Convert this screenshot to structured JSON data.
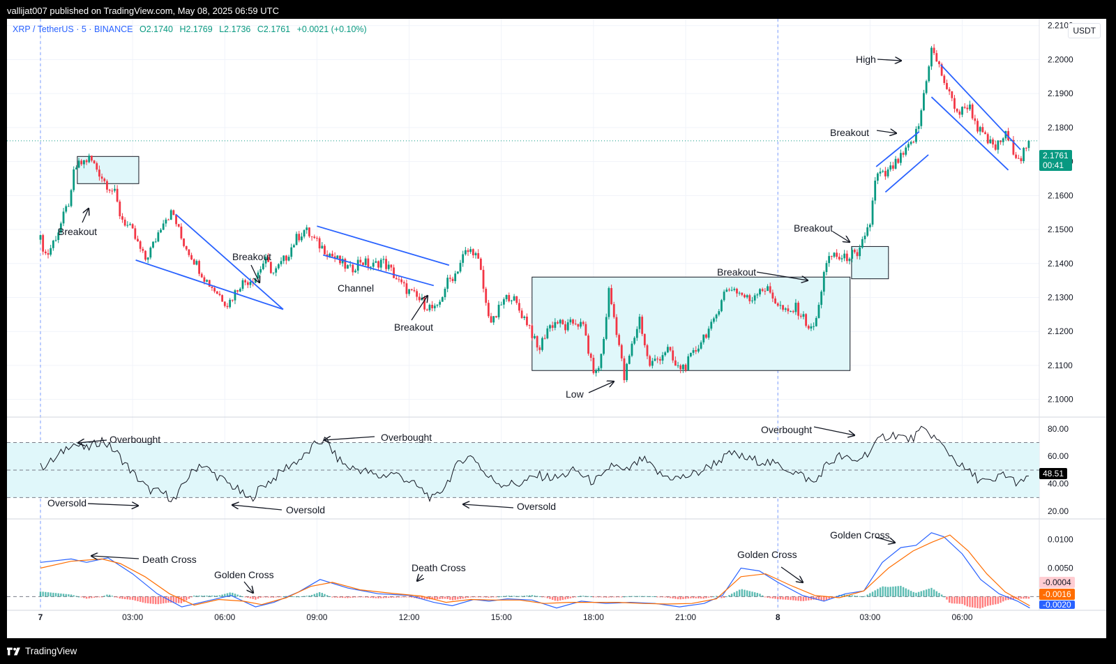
{
  "header": {
    "published_text": "vallijat007 published on TradingView.com, May 08, 2025 06:59 UTC"
  },
  "footer": {
    "brand": "TradingView"
  },
  "symbol_bar": {
    "symbol": "XRP / TetherUS · 5 · BINANCE",
    "open": "O2.1740",
    "high": "H2.1769",
    "low": "L2.1736",
    "close": "C2.1761",
    "change": "+0.0021 (+0.10%)"
  },
  "currency_label": "USDT",
  "colors": {
    "up": "#089981",
    "down": "#f23645",
    "trendline": "#2962ff",
    "box_fill": "#e0f7fa",
    "macd_line": "#2962ff",
    "signal_line": "#ff6d00",
    "rsi_line": "#131722"
  },
  "price_tag": {
    "price": "2.1761",
    "countdown": "00:41"
  },
  "rsi_tag": "48.51",
  "macd_tags": [
    "-0.0004",
    "-0.0016",
    "-0.0020"
  ],
  "annotations": {
    "breakout_1": "Breakout",
    "breakout_2": "Breakout",
    "channel": "Channel",
    "breakout_3": "Breakout",
    "low": "Low",
    "breakout_4": "Breakout",
    "breakout_5": "Breakout",
    "breakout_6": "Breakout",
    "high": "High",
    "overbought_1": "Overbought",
    "overbought_2": "Overbought",
    "overbought_3": "Overbought",
    "oversold_1": "Oversold",
    "oversold_2": "Oversold",
    "oversold_3": "Oversold",
    "death_cross_1": "Death Cross",
    "golden_cross_1": "Golden Cross",
    "death_cross_2": "Death Cross",
    "golden_cross_2": "Golden Cross",
    "golden_cross_3": "Golden Cross"
  },
  "chart_data": [
    {
      "type": "candlestick",
      "title": "XRP / TetherUS · 5 · BINANCE",
      "ylim": [
        2.095,
        2.212
      ],
      "y_ticks": [
        "2.1000",
        "2.1100",
        "2.1200",
        "2.1300",
        "2.1400",
        "2.1500",
        "2.1600",
        "2.1700",
        "2.1800",
        "2.1900",
        "2.2000",
        "2.2100"
      ],
      "x_ticks": [
        "7",
        "03:00",
        "06:00",
        "09:00",
        "12:00",
        "15:00",
        "18:00",
        "21:00",
        "8",
        "03:00",
        "06:00"
      ],
      "close_path": [
        [
          0.0,
          2.147
        ],
        [
          0.2,
          2.142
        ],
        [
          0.6,
          2.15
        ],
        [
          1.0,
          2.16
        ],
        [
          1.1,
          2.168
        ],
        [
          1.6,
          2.171
        ],
        [
          1.9,
          2.167
        ],
        [
          2.1,
          2.164
        ],
        [
          2.4,
          2.161
        ],
        [
          2.6,
          2.154
        ],
        [
          3.0,
          2.149
        ],
        [
          3.4,
          2.141
        ],
        [
          3.7,
          2.146
        ],
        [
          4.0,
          2.153
        ],
        [
          4.3,
          2.155
        ],
        [
          4.6,
          2.147
        ],
        [
          5.0,
          2.141
        ],
        [
          5.4,
          2.135
        ],
        [
          5.8,
          2.131
        ],
        [
          6.1,
          2.128
        ],
        [
          6.5,
          2.134
        ],
        [
          7.0,
          2.136
        ],
        [
          7.3,
          2.141
        ],
        [
          7.6,
          2.137
        ],
        [
          8.0,
          2.142
        ],
        [
          8.3,
          2.147
        ],
        [
          8.6,
          2.15
        ],
        [
          9.0,
          2.146
        ],
        [
          9.4,
          2.143
        ],
        [
          9.8,
          2.14
        ],
        [
          10.1,
          2.138
        ],
        [
          10.4,
          2.141
        ],
        [
          10.8,
          2.139
        ],
        [
          11.1,
          2.141
        ],
        [
          11.4,
          2.138
        ],
        [
          11.7,
          2.134
        ],
        [
          12.1,
          2.131
        ],
        [
          12.5,
          2.128
        ],
        [
          12.9,
          2.126
        ],
        [
          13.2,
          2.134
        ],
        [
          13.5,
          2.137
        ],
        [
          13.8,
          2.143
        ],
        [
          14.1,
          2.144
        ],
        [
          14.3,
          2.139
        ],
        [
          14.5,
          2.128
        ],
        [
          14.7,
          2.122
        ],
        [
          15.0,
          2.128
        ],
        [
          15.3,
          2.131
        ],
        [
          15.6,
          2.126
        ],
        [
          15.9,
          2.122
        ],
        [
          16.2,
          2.114
        ],
        [
          16.5,
          2.121
        ],
        [
          16.8,
          2.123
        ],
        [
          17.1,
          2.121
        ],
        [
          17.4,
          2.123
        ],
        [
          17.7,
          2.121
        ],
        [
          17.9,
          2.111
        ],
        [
          18.1,
          2.107
        ],
        [
          18.3,
          2.115
        ],
        [
          18.5,
          2.132
        ],
        [
          18.8,
          2.118
        ],
        [
          19.0,
          2.106
        ],
        [
          19.2,
          2.114
        ],
        [
          19.5,
          2.124
        ],
        [
          19.8,
          2.11
        ],
        [
          20.1,
          2.112
        ],
        [
          20.4,
          2.115
        ],
        [
          20.7,
          2.109
        ],
        [
          21.0,
          2.11
        ],
        [
          21.3,
          2.114
        ],
        [
          21.6,
          2.119
        ],
        [
          21.9,
          2.122
        ],
        [
          22.2,
          2.131
        ],
        [
          22.5,
          2.133
        ],
        [
          22.8,
          2.131
        ],
        [
          23.1,
          2.129
        ],
        [
          23.4,
          2.133
        ],
        [
          23.7,
          2.132
        ],
        [
          24.0,
          2.128
        ],
        [
          24.3,
          2.125
        ],
        [
          24.6,
          2.127
        ],
        [
          24.9,
          2.123
        ],
        [
          25.1,
          2.12
        ],
        [
          25.3,
          2.125
        ],
        [
          25.5,
          2.138
        ],
        [
          25.8,
          2.143
        ],
        [
          26.1,
          2.141
        ],
        [
          26.4,
          2.143
        ],
        [
          26.6,
          2.141
        ],
        [
          26.8,
          2.148
        ],
        [
          27.0,
          2.152
        ],
        [
          27.2,
          2.166
        ],
        [
          27.5,
          2.166
        ],
        [
          27.8,
          2.169
        ],
        [
          28.1,
          2.172
        ],
        [
          28.4,
          2.176
        ],
        [
          28.6,
          2.181
        ],
        [
          28.8,
          2.193
        ],
        [
          29.0,
          2.203
        ],
        [
          29.2,
          2.199
        ],
        [
          29.4,
          2.194
        ],
        [
          29.6,
          2.189
        ],
        [
          29.9,
          2.184
        ],
        [
          30.2,
          2.187
        ],
        [
          30.5,
          2.18
        ],
        [
          30.8,
          2.176
        ],
        [
          31.1,
          2.174
        ],
        [
          31.4,
          2.178
        ],
        [
          31.7,
          2.173
        ],
        [
          31.9,
          2.171
        ],
        [
          32.1,
          2.175
        ],
        [
          32.2,
          2.1761
        ]
      ]
    },
    {
      "type": "line",
      "title": "RSI",
      "ylim": [
        15,
        88
      ],
      "y_ticks": [
        "20.00",
        "40.00",
        "60.00",
        "80.00"
      ],
      "bands": [
        30,
        50,
        70
      ],
      "path": [
        [
          0.0,
          52
        ],
        [
          0.5,
          58
        ],
        [
          1.0,
          70
        ],
        [
          1.5,
          65
        ],
        [
          2.0,
          72
        ],
        [
          2.5,
          62
        ],
        [
          3.0,
          48
        ],
        [
          3.5,
          36
        ],
        [
          4.0,
          33
        ],
        [
          4.4,
          28
        ],
        [
          4.7,
          42
        ],
        [
          5.2,
          55
        ],
        [
          5.6,
          48
        ],
        [
          6.0,
          42
        ],
        [
          6.4,
          36
        ],
        [
          6.8,
          28
        ],
        [
          7.2,
          38
        ],
        [
          7.6,
          44
        ],
        [
          8.0,
          52
        ],
        [
          8.6,
          60
        ],
        [
          9.0,
          70
        ],
        [
          9.3,
          72
        ],
        [
          9.6,
          60
        ],
        [
          10.0,
          52
        ],
        [
          10.5,
          50
        ],
        [
          11.0,
          45
        ],
        [
          11.5,
          48
        ],
        [
          12.0,
          42
        ],
        [
          12.5,
          34
        ],
        [
          12.8,
          28
        ],
        [
          13.2,
          40
        ],
        [
          13.7,
          58
        ],
        [
          14.1,
          60
        ],
        [
          14.5,
          46
        ],
        [
          15.0,
          40
        ],
        [
          15.6,
          40
        ],
        [
          16.2,
          46
        ],
        [
          16.8,
          44
        ],
        [
          17.4,
          50
        ],
        [
          17.9,
          42
        ],
        [
          18.3,
          44
        ],
        [
          18.6,
          55
        ],
        [
          19.0,
          48
        ],
        [
          19.6,
          58
        ],
        [
          20.2,
          46
        ],
        [
          20.8,
          44
        ],
        [
          21.4,
          48
        ],
        [
          22.0,
          56
        ],
        [
          22.5,
          62
        ],
        [
          23.0,
          58
        ],
        [
          23.6,
          56
        ],
        [
          24.2,
          52
        ],
        [
          24.8,
          46
        ],
        [
          25.2,
          40
        ],
        [
          25.5,
          52
        ],
        [
          26.0,
          60
        ],
        [
          26.5,
          56
        ],
        [
          27.0,
          64
        ],
        [
          27.4,
          74
        ],
        [
          27.8,
          76
        ],
        [
          28.3,
          72
        ],
        [
          28.7,
          79
        ],
        [
          29.0,
          76
        ],
        [
          29.5,
          64
        ],
        [
          30.0,
          52
        ],
        [
          30.5,
          44
        ],
        [
          31.0,
          40
        ],
        [
          31.3,
          48
        ],
        [
          31.7,
          42
        ],
        [
          32.0,
          40
        ],
        [
          32.2,
          48.51
        ]
      ]
    },
    {
      "type": "macd",
      "title": "MACD",
      "ylim": [
        -0.0024,
        0.0135
      ],
      "y_ticks": [
        "0.0050",
        "0.0100"
      ],
      "macd": [
        [
          0.0,
          0.006
        ],
        [
          1.0,
          0.0066
        ],
        [
          1.5,
          0.006
        ],
        [
          2.2,
          0.0068
        ],
        [
          3.0,
          0.004
        ],
        [
          3.8,
          0.0005
        ],
        [
          4.6,
          -0.0018
        ],
        [
          5.4,
          -0.0008
        ],
        [
          6.2,
          0.0002
        ],
        [
          7.0,
          -0.0018
        ],
        [
          7.6,
          -0.001
        ],
        [
          8.4,
          0.0008
        ],
        [
          9.1,
          0.003
        ],
        [
          10.0,
          0.0015
        ],
        [
          11.0,
          0.0005
        ],
        [
          12.0,
          0.0002
        ],
        [
          12.8,
          -0.001
        ],
        [
          13.4,
          -0.0016
        ],
        [
          14.1,
          -0.0005
        ],
        [
          14.6,
          -0.0008
        ],
        [
          15.2,
          -0.0004
        ],
        [
          16.0,
          -0.0006
        ],
        [
          16.8,
          -0.002
        ],
        [
          17.6,
          -0.0008
        ],
        [
          18.4,
          -0.0012
        ],
        [
          19.2,
          -0.001
        ],
        [
          20.0,
          -0.0012
        ],
        [
          20.8,
          -0.0018
        ],
        [
          21.6,
          -0.0012
        ],
        [
          22.2,
          0.0002
        ],
        [
          22.8,
          0.005
        ],
        [
          23.4,
          0.0045
        ],
        [
          24.0,
          0.0025
        ],
        [
          24.8,
          0.0002
        ],
        [
          25.5,
          -0.0008
        ],
        [
          26.2,
          0.0005
        ],
        [
          26.8,
          0.001
        ],
        [
          27.4,
          0.006
        ],
        [
          28.0,
          0.0086
        ],
        [
          28.5,
          0.009
        ],
        [
          29.0,
          0.0112
        ],
        [
          29.4,
          0.0105
        ],
        [
          30.0,
          0.0075
        ],
        [
          30.6,
          0.003
        ],
        [
          31.2,
          0.0005
        ],
        [
          31.8,
          -0.0008
        ],
        [
          32.2,
          -0.002
        ]
      ],
      "signal": [
        [
          0.0,
          0.005
        ],
        [
          1.0,
          0.0062
        ],
        [
          2.0,
          0.0066
        ],
        [
          2.6,
          0.0058
        ],
        [
          3.4,
          0.0035
        ],
        [
          4.2,
          0.0005
        ],
        [
          5.0,
          -0.0015
        ],
        [
          5.8,
          -0.0005
        ],
        [
          6.6,
          -0.0008
        ],
        [
          7.2,
          -0.0014
        ],
        [
          8.0,
          -0.0002
        ],
        [
          8.8,
          0.0018
        ],
        [
          9.5,
          0.0025
        ],
        [
          10.4,
          0.0012
        ],
        [
          11.4,
          0.0006
        ],
        [
          12.4,
          0.0001
        ],
        [
          13.2,
          -0.001
        ],
        [
          14.0,
          -0.0005
        ],
        [
          14.8,
          -0.0006
        ],
        [
          15.6,
          -0.0006
        ],
        [
          16.4,
          -0.0012
        ],
        [
          17.2,
          -0.001
        ],
        [
          18.0,
          -0.001
        ],
        [
          18.8,
          -0.001
        ],
        [
          19.6,
          -0.0012
        ],
        [
          20.4,
          -0.0013
        ],
        [
          21.2,
          -0.0012
        ],
        [
          22.0,
          -0.0004
        ],
        [
          22.8,
          0.0035
        ],
        [
          23.6,
          0.004
        ],
        [
          24.4,
          0.002
        ],
        [
          25.2,
          0.0002
        ],
        [
          26.0,
          -0.0002
        ],
        [
          26.8,
          0.001
        ],
        [
          27.6,
          0.005
        ],
        [
          28.4,
          0.008
        ],
        [
          29.0,
          0.0095
        ],
        [
          29.6,
          0.0108
        ],
        [
          30.2,
          0.008
        ],
        [
          30.8,
          0.004
        ],
        [
          31.4,
          0.0008
        ],
        [
          32.2,
          -0.0016
        ]
      ]
    }
  ]
}
